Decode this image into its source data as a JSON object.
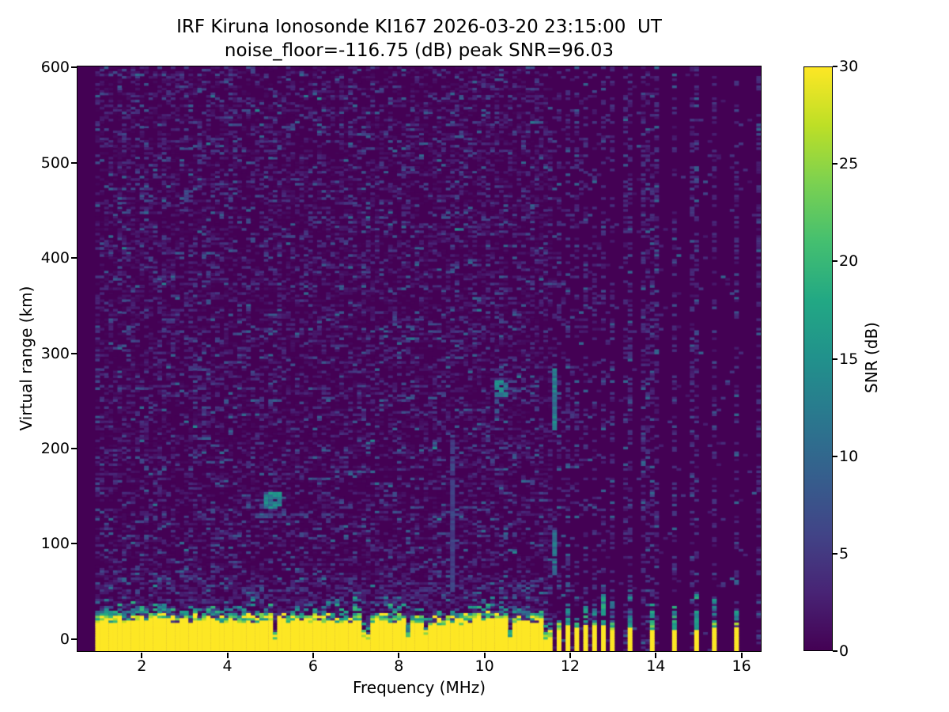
{
  "title": {
    "line1": "IRF Kiruna Ionosonde KI167 2026-03-20 23:15:00  UT",
    "line2": "noise_floor=-116.75 (dB) peak SNR=96.03"
  },
  "axes": {
    "xlabel": "Frequency (MHz)",
    "ylabel": "Virtual range (km)",
    "x_ticks": [
      2,
      4,
      6,
      8,
      10,
      12,
      14,
      16
    ],
    "y_ticks": [
      0,
      100,
      200,
      300,
      400,
      500,
      600
    ]
  },
  "colorbar": {
    "label": "SNR (dB)",
    "ticks": [
      0,
      5,
      10,
      15,
      20,
      25,
      30
    ],
    "range": [
      0,
      30
    ],
    "colormap": "viridis",
    "stops": [
      "#440154",
      "#482475",
      "#414487",
      "#355f8d",
      "#2a788e",
      "#21918c",
      "#22a884",
      "#44bf70",
      "#7ad151",
      "#bddf26",
      "#fde725"
    ]
  },
  "chart_data": {
    "type": "heatmap",
    "title": "IRF Kiruna Ionosonde KI167 2026-03-20 23:15:00  UT",
    "subtitle": "noise_floor=-116.75 (dB) peak SNR=96.03",
    "xlabel": "Frequency (MHz)",
    "ylabel": "Virtual range (km)",
    "zlabel": "SNR (dB)",
    "x_range": [
      0.5,
      16.45
    ],
    "y_range": [
      -12.5,
      601
    ],
    "z_range": [
      0,
      30
    ],
    "noise_floor_db": -116.75,
    "peak_snr_db": 96.03,
    "grid": false,
    "noise": {
      "seed": 167,
      "f_data_start": 0.88,
      "cell_w_mhz": 0.1036,
      "cell_h_km": 2.5,
      "dense_fill_prob": 0.42,
      "cluster_col_prob": 0.3,
      "cluster_bg_prob": 0.1,
      "far_col_prob": 0.33,
      "far_bg_prob": 0.02
    },
    "clutter": {
      "f_start": 0.88,
      "f_end": 11.62,
      "top_km_mean": 26,
      "top_km_spread": 12,
      "notch_prob": 0.07,
      "cap_extra_km": 14,
      "value_db": 30
    },
    "rf_bars": {
      "cluster": [
        11.72,
        11.93,
        12.14,
        12.35,
        12.56,
        12.77,
        12.98
      ],
      "isolated": [
        13.43,
        13.96,
        14.42,
        14.9,
        15.4,
        15.9
      ],
      "extra_dash_columns": [
        13.28,
        13.76,
        16.38
      ]
    },
    "features": [
      {
        "name": "interference-line-9.2MHz",
        "type": "vline",
        "f": 9.25,
        "r0": 52,
        "r1": 212,
        "v": 5.5
      },
      {
        "name": "echo-column-11.6MHz-upper",
        "type": "vline",
        "f": 11.6,
        "r0": 220,
        "r1": 283,
        "v": 12
      },
      {
        "name": "echo-column-11.6MHz-lower",
        "type": "vline",
        "f": 11.6,
        "r0": 68,
        "r1": 115,
        "v": 11
      },
      {
        "name": "echo-arrow-10.5MHz",
        "type": "blob",
        "f0": 10.32,
        "f1": 10.62,
        "r0": 256,
        "r1": 271,
        "v": 13
      },
      {
        "name": "echo-tail-10.8MHz",
        "type": "hstreak",
        "f0": 10.55,
        "f1": 11.15,
        "r": 263,
        "v": 8
      },
      {
        "name": "echo-blob-5.1MHz",
        "type": "blob",
        "f0": 4.95,
        "f1": 5.3,
        "r0": 138,
        "r1": 153,
        "v": 13
      },
      {
        "name": "echo-streak-5.5MHz",
        "type": "hstreak",
        "f0": 4.55,
        "f1": 6.55,
        "r": 131,
        "v": 5.5
      }
    ]
  }
}
